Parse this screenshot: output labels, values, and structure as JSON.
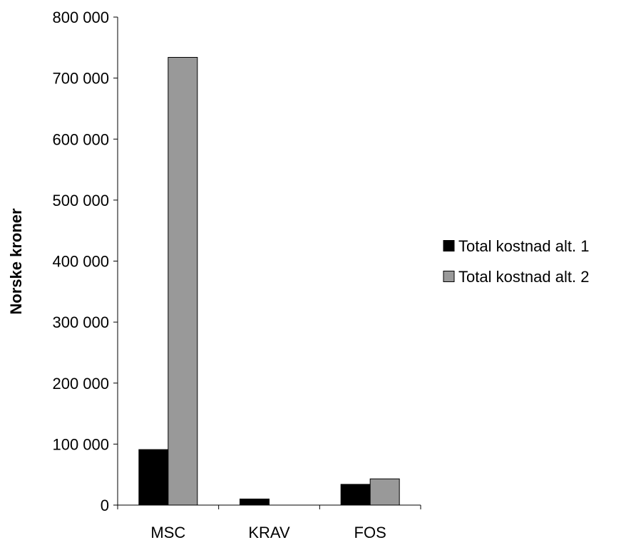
{
  "chart_data": {
    "type": "bar",
    "categories": [
      "MSC",
      "KRAV",
      "FOS"
    ],
    "series": [
      {
        "name": "Total kostnad alt. 1",
        "color": "#000000",
        "values": [
          91000,
          10000,
          34000
        ]
      },
      {
        "name": "Total kostnad alt. 2",
        "color": "#999999",
        "values": [
          734000,
          0,
          43000
        ]
      }
    ],
    "ylabel": "Norske kroner",
    "ylim": [
      0,
      800000
    ],
    "yticks": [
      0,
      100000,
      200000,
      300000,
      400000,
      500000,
      600000,
      700000,
      800000
    ],
    "ytick_labels": [
      "0",
      "100 000",
      "200 000",
      "300 000",
      "400 000",
      "500 000",
      "600 000",
      "700 000",
      "800 000"
    ],
    "grid": false,
    "legend_position": "right"
  }
}
